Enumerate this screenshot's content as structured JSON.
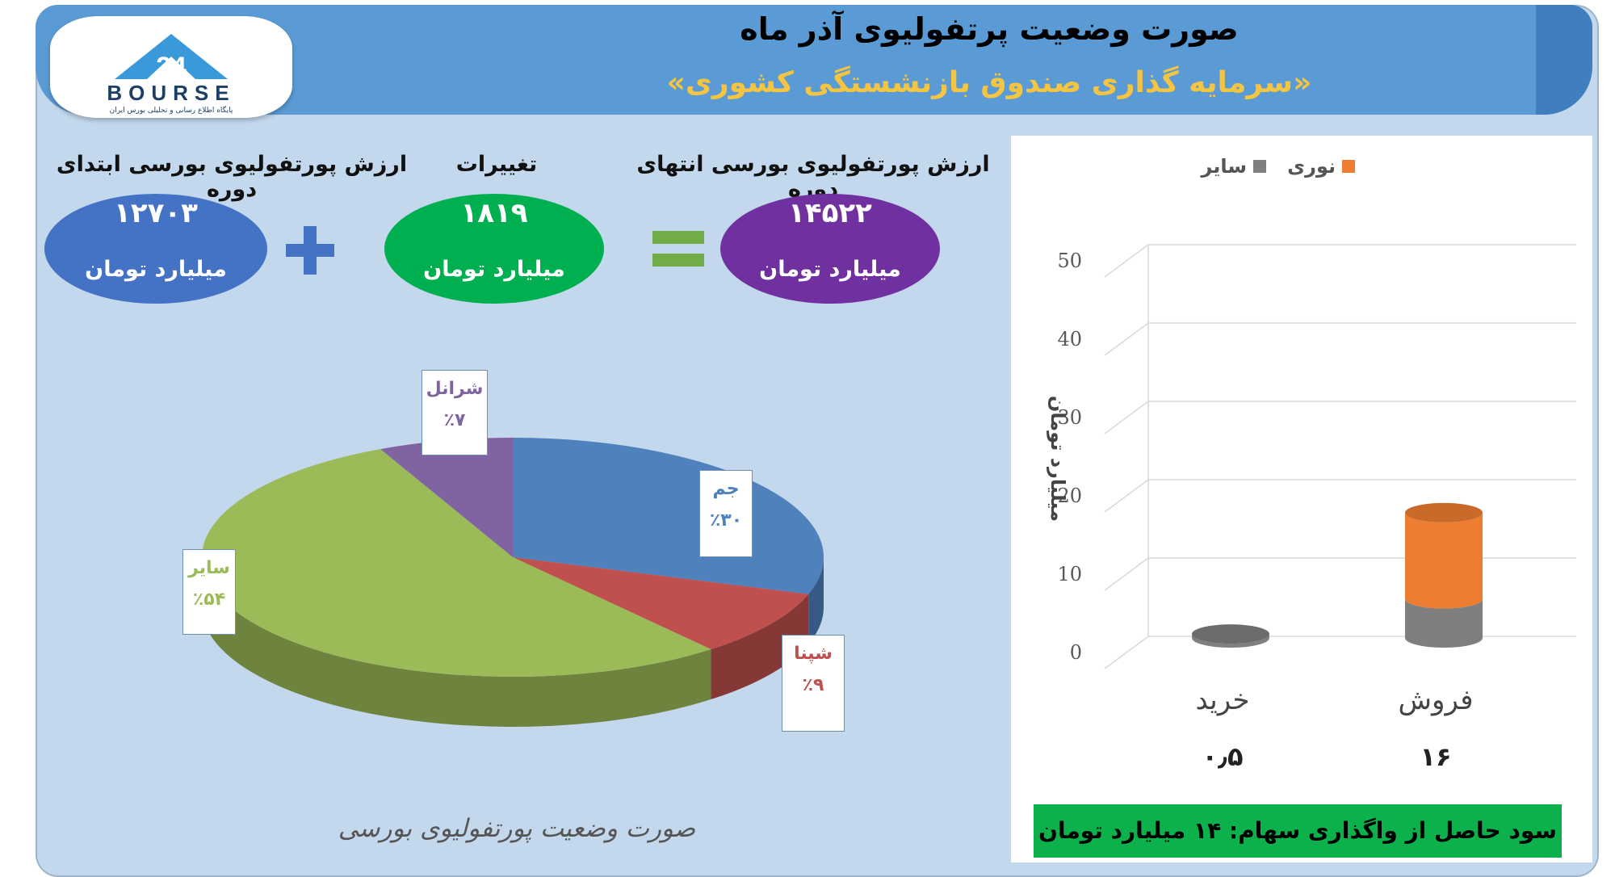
{
  "header": {
    "title": "صورت وضعیت پرتفولیوی آذر ماه",
    "subtitle": "«سرمایه گذاری صندوق بازنشستگی کشوری»"
  },
  "logo": {
    "text": "BOURSE",
    "tagline": "پایگاه اطلاع رسانی و تحلیلی بورس ایران"
  },
  "summary": {
    "start": {
      "label": "ارزش پورتفولیوی بورسی ابتدای دوره",
      "value": "۱۲۷۰۳",
      "unit": "میلیارد تومان",
      "color": "#4472c4"
    },
    "change": {
      "label": "تغییرات",
      "value": "۱۸۱۹",
      "unit": "میلیارد تومان",
      "color": "#00b050"
    },
    "end": {
      "label": "ارزش پورتفولیوی بورسی انتهای دوره",
      "value": "۱۴۵۲۲",
      "unit": "میلیارد تومان",
      "color": "#7030a0"
    },
    "plus_color": "#4472c4",
    "equals_color": "#70ad47"
  },
  "pie_caption": "صورت وضعیت پورتفولیوی بورسی",
  "footer": "سود حاصل از واگذاری سهام: ۱۴ میلیارد تومان",
  "chart_data": [
    {
      "type": "pie",
      "title": "صورت وضعیت پورتفولیوی بورسی",
      "slices": [
        {
          "name": "جم",
          "value": 30,
          "label": "٪۳۰",
          "color": "#4f81bd"
        },
        {
          "name": "شپنا",
          "value": 9,
          "label": "٪۹",
          "color": "#c0504d"
        },
        {
          "name": "سایر",
          "value": 54,
          "label": "٪۵۴",
          "color": "#9bbb59"
        },
        {
          "name": "شرانل",
          "value": 7,
          "label": "٪۷",
          "color": "#8064a2"
        }
      ]
    },
    {
      "type": "bar",
      "categories": [
        "فروش",
        "خرید"
      ],
      "category_totals": [
        "۱۶",
        "۰٫۵"
      ],
      "series": [
        {
          "name": "سایر",
          "values": [
            5,
            0.5
          ],
          "color": "#7f7f7f"
        },
        {
          "name": "نوری",
          "values": [
            11,
            0
          ],
          "color": "#ed7d31"
        }
      ],
      "ylabel": "میلیارد تومان",
      "ylim": [
        0,
        50
      ],
      "yticks": [
        0,
        10,
        20,
        30,
        40,
        50
      ],
      "legend": "top",
      "grid": true
    }
  ]
}
